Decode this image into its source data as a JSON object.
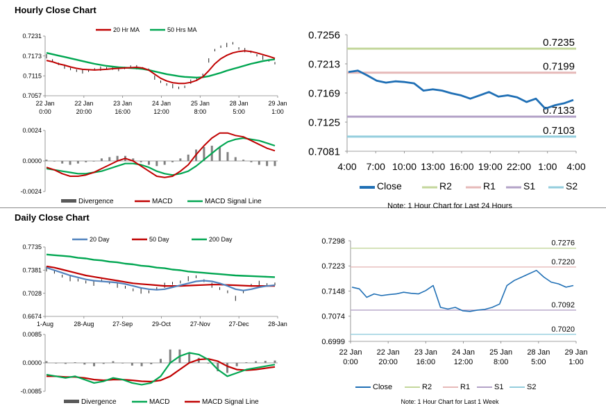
{
  "hourly_title": "Hourly Close Chart",
  "daily_title": "Daily Close Chart",
  "colors": {
    "close": "#1f6fb5",
    "ma_red": "#c00000",
    "ma_green": "#00a651",
    "ma_blue": "#4f81bd",
    "r2": "#c3d69b",
    "r1": "#e6b9b8",
    "s1": "#b3a2c7",
    "s2": "#93cddd",
    "divergence": "#808080"
  },
  "chart_data": [
    {
      "id": "hourly_price",
      "type": "line",
      "title": "Hourly Close Chart",
      "legend": [
        "20 Hr MA",
        "50 Hrs MA"
      ],
      "yticks": [
        "0.7231",
        "0.7173",
        "0.7115",
        "0.7057"
      ],
      "ylim": [
        0.7057,
        0.7231
      ],
      "xticks": [
        [
          "22 Jan",
          "0:00"
        ],
        [
          "22 Jan",
          "20:00"
        ],
        [
          "23 Jan",
          "16:00"
        ],
        [
          "24 Jan",
          "12:00"
        ],
        [
          "25 Jan",
          "8:00"
        ],
        [
          "28 Jan",
          "5:00"
        ],
        [
          "29 Jan",
          "1:00"
        ]
      ],
      "series": [
        {
          "name": "Close",
          "values": [
            0.7172,
            0.716,
            0.715,
            0.7142,
            0.7135,
            0.713,
            0.7128,
            0.713,
            0.7134,
            0.7136,
            0.7137,
            0.7136,
            0.7135,
            0.7138,
            0.7142,
            0.714,
            0.7137,
            0.7133,
            0.711,
            0.7098,
            0.709,
            0.7085,
            0.708,
            0.7083,
            0.7098,
            0.7105,
            0.7118,
            0.716,
            0.719,
            0.72,
            0.7205,
            0.721,
            0.7195,
            0.719,
            0.7185,
            0.7175,
            0.7168,
            0.716,
            0.7152
          ]
        },
        {
          "name": "20 Hr MA",
          "values": [
            0.716,
            0.7156,
            0.715,
            0.7146,
            0.7141,
            0.7137,
            0.7134,
            0.7133,
            0.7132,
            0.7133,
            0.7134,
            0.7136,
            0.7137,
            0.7138,
            0.7139,
            0.714,
            0.7138,
            0.7132,
            0.712,
            0.7108,
            0.71,
            0.7095,
            0.7093,
            0.7093,
            0.7096,
            0.7102,
            0.7112,
            0.713,
            0.715,
            0.7165,
            0.7175,
            0.7182,
            0.7186,
            0.7188,
            0.7186,
            0.7182,
            0.7177,
            0.7172,
            0.7166
          ]
        },
        {
          "name": "50 Hrs MA",
          "values": [
            0.7182,
            0.7178,
            0.7174,
            0.717,
            0.7166,
            0.7162,
            0.7158,
            0.7154,
            0.715,
            0.7147,
            0.7144,
            0.7142,
            0.714,
            0.7139,
            0.7138,
            0.7137,
            0.7135,
            0.7132,
            0.7128,
            0.7124,
            0.712,
            0.7117,
            0.7114,
            0.7112,
            0.7111,
            0.711,
            0.7111,
            0.7114,
            0.7119,
            0.7124,
            0.713,
            0.7135,
            0.714,
            0.7145,
            0.715,
            0.7154,
            0.7158,
            0.7161,
            0.7163
          ]
        }
      ]
    },
    {
      "id": "hourly_macd",
      "type": "line",
      "legend": [
        "Divergence",
        "MACD",
        "MACD Signal Line"
      ],
      "yticks": [
        "0.0024",
        "0.0000",
        "-0.0024"
      ],
      "ylim": [
        -0.0024,
        0.0024
      ],
      "series": [
        {
          "name": "MACD",
          "values": [
            -0.0005,
            -0.0007,
            -0.001,
            -0.0012,
            -0.0012,
            -0.0011,
            -0.0009,
            -0.0006,
            -0.0003,
            0.0,
            0.0002,
            0.0,
            -0.0004,
            -0.0008,
            -0.0012,
            -0.0013,
            -0.0012,
            -0.0008,
            -0.0003,
            0.0005,
            0.0012,
            0.0018,
            0.0022,
            0.0022,
            0.002,
            0.0019,
            0.0016,
            0.0013,
            0.001,
            0.0008
          ]
        },
        {
          "name": "MACD Signal Line",
          "values": [
            -0.0006,
            -0.0007,
            -0.0008,
            -0.0009,
            -0.001,
            -0.001,
            -0.0009,
            -0.0008,
            -0.0006,
            -0.0004,
            -0.0002,
            -0.0002,
            -0.0003,
            -0.0005,
            -0.0008,
            -0.001,
            -0.0011,
            -0.001,
            -0.0008,
            -0.0004,
            0.0001,
            0.0006,
            0.0011,
            0.0015,
            0.0017,
            0.0018,
            0.0017,
            0.0016,
            0.0014,
            0.0012
          ]
        },
        {
          "name": "Divergence",
          "values": [
            0.0001,
            0.0,
            -0.0002,
            -0.0003,
            -0.0002,
            -0.0001,
            0.0,
            0.0002,
            0.0003,
            0.0004,
            0.0004,
            0.0002,
            -0.0001,
            -0.0003,
            -0.0004,
            -0.0003,
            -0.0001,
            0.0002,
            0.0005,
            0.0009,
            0.0011,
            0.0012,
            0.0011,
            0.0007,
            0.0003,
            0.0001,
            -0.0001,
            -0.0003,
            -0.0004,
            -0.0004
          ]
        }
      ]
    },
    {
      "id": "hourly_24h",
      "type": "line",
      "note": "Note: 1 Hour Chart for Last 24 Hours",
      "yticks": [
        "0.7256",
        "0.7213",
        "0.7169",
        "0.7125",
        "0.7081"
      ],
      "ylim": [
        0.7081,
        0.7256
      ],
      "xticks": [
        "4:00",
        "7:00",
        "10:00",
        "13:00",
        "16:00",
        "19:00",
        "22:00",
        "1:00",
        "4:00"
      ],
      "legend": [
        "Close",
        "R2",
        "R1",
        "S1",
        "S2"
      ],
      "levels": [
        {
          "name": "R2",
          "value": 0.7235,
          "label": "0.7235"
        },
        {
          "name": "R1",
          "value": 0.7199,
          "label": "0.7199"
        },
        {
          "name": "S1",
          "value": 0.7133,
          "label": "0.7133"
        },
        {
          "name": "S2",
          "value": 0.7103,
          "label": "0.7103"
        }
      ],
      "series": [
        {
          "name": "Close",
          "values": [
            0.72,
            0.7202,
            0.7195,
            0.7187,
            0.7184,
            0.7186,
            0.7185,
            0.7183,
            0.7172,
            0.7174,
            0.7172,
            0.7168,
            0.7165,
            0.716,
            0.7165,
            0.717,
            0.7163,
            0.7165,
            0.7162,
            0.7155,
            0.716,
            0.7145,
            0.715,
            0.7153,
            0.7158
          ]
        }
      ]
    },
    {
      "id": "daily_price",
      "type": "line",
      "title": "Daily Close Chart",
      "legend": [
        "20 Day",
        "50 Day",
        "200 Day"
      ],
      "yticks": [
        "0.7735",
        "0.7381",
        "0.7028",
        "0.6674"
      ],
      "ylim": [
        0.6674,
        0.7735
      ],
      "xticks": [
        "1-Aug",
        "28-Aug",
        "27-Sep",
        "29-Oct",
        "27-Nov",
        "27-Dec",
        "28-Jan"
      ],
      "series": [
        {
          "name": "Close",
          "values": [
            0.74,
            0.735,
            0.729,
            0.725,
            0.723,
            0.72,
            0.718,
            0.722,
            0.719,
            0.715,
            0.712,
            0.708,
            0.706,
            0.705,
            0.71,
            0.715,
            0.718,
            0.72,
            0.725,
            0.728,
            0.722,
            0.715,
            0.71,
            0.705,
            0.695,
            0.705,
            0.715,
            0.718,
            0.716,
            0.717
          ]
        },
        {
          "name": "20 Day",
          "values": [
            0.742,
            0.738,
            0.734,
            0.73,
            0.727,
            0.724,
            0.722,
            0.721,
            0.72,
            0.719,
            0.717,
            0.714,
            0.711,
            0.709,
            0.708,
            0.709,
            0.712,
            0.715,
            0.718,
            0.721,
            0.722,
            0.721,
            0.718,
            0.714,
            0.709,
            0.707,
            0.709,
            0.712,
            0.714,
            0.715
          ]
        },
        {
          "name": "50 Day",
          "values": [
            0.744,
            0.742,
            0.739,
            0.736,
            0.733,
            0.73,
            0.728,
            0.726,
            0.724,
            0.722,
            0.72,
            0.718,
            0.717,
            0.716,
            0.715,
            0.714,
            0.714,
            0.714,
            0.7145,
            0.715,
            0.7155,
            0.716,
            0.716,
            0.7155,
            0.715,
            0.7145,
            0.714,
            0.714,
            0.714,
            0.714
          ]
        },
        {
          "name": "200 Day",
          "values": [
            0.762,
            0.761,
            0.76,
            0.759,
            0.757,
            0.756,
            0.754,
            0.753,
            0.751,
            0.75,
            0.748,
            0.747,
            0.745,
            0.744,
            0.742,
            0.741,
            0.739,
            0.738,
            0.736,
            0.735,
            0.734,
            0.733,
            0.732,
            0.731,
            0.73,
            0.7295,
            0.729,
            0.7285,
            0.728,
            0.7275
          ]
        }
      ]
    },
    {
      "id": "daily_macd",
      "type": "line",
      "legend": [
        "Divergence",
        "MACD",
        "MACD Signal Line"
      ],
      "yticks": [
        "0.0085",
        "0.0000",
        "-0.0085"
      ],
      "ylim": [
        -0.0085,
        0.0085
      ],
      "series": [
        {
          "name": "MACD",
          "values": [
            -0.0035,
            -0.004,
            -0.0045,
            -0.004,
            -0.005,
            -0.006,
            -0.0055,
            -0.0045,
            -0.005,
            -0.006,
            -0.0065,
            -0.006,
            -0.004,
            0.0,
            0.002,
            0.003,
            0.0025,
            0.001,
            -0.002,
            -0.004,
            -0.003,
            -0.002,
            -0.0015,
            -0.001,
            -0.0005
          ]
        },
        {
          "name": "MACD Signal Line",
          "values": [
            -0.004,
            -0.004,
            -0.0042,
            -0.0042,
            -0.0045,
            -0.005,
            -0.0052,
            -0.005,
            -0.005,
            -0.0052,
            -0.0055,
            -0.0056,
            -0.0052,
            -0.004,
            -0.002,
            0.0,
            0.001,
            0.0012,
            0.0005,
            -0.001,
            -0.002,
            -0.0022,
            -0.002,
            -0.0016,
            -0.0012
          ]
        },
        {
          "name": "Divergence",
          "values": [
            0.0005,
            0.0,
            -0.0003,
            0.0002,
            -0.0005,
            -0.001,
            -0.0003,
            0.0005,
            0.0,
            -0.0008,
            -0.001,
            -0.0004,
            0.0012,
            0.004,
            0.004,
            0.003,
            0.0015,
            -0.0002,
            -0.0025,
            -0.003,
            -0.001,
            0.0002,
            0.0005,
            0.0006,
            0.0007
          ]
        }
      ]
    },
    {
      "id": "daily_week",
      "type": "line",
      "note": "Note: 1 Hour Chart for Last 1 Week",
      "yticks": [
        "0.7298",
        "0.7223",
        "0.7148",
        "0.7074",
        "0.6999"
      ],
      "ylim": [
        0.6999,
        0.7298
      ],
      "xticks": [
        [
          "22 Jan",
          "0:00"
        ],
        [
          "22 Jan",
          "20:00"
        ],
        [
          "23 Jan",
          "16:00"
        ],
        [
          "24 Jan",
          "12:00"
        ],
        [
          "25 Jan",
          "8:00"
        ],
        [
          "28 Jan",
          "5:00"
        ],
        [
          "29 Jan",
          "1:00"
        ]
      ],
      "legend": [
        "Close",
        "R2",
        "R1",
        "S1",
        "S2"
      ],
      "levels": [
        {
          "name": "R2",
          "value": 0.7276,
          "label": "0.7276"
        },
        {
          "name": "R1",
          "value": 0.722,
          "label": "0.7220"
        },
        {
          "name": "S1",
          "value": 0.7092,
          "label": "0.7092"
        },
        {
          "name": "S2",
          "value": 0.702,
          "label": "0.7020"
        }
      ],
      "series": [
        {
          "name": "Close",
          "values": [
            0.716,
            0.7155,
            0.713,
            0.714,
            0.7135,
            0.7138,
            0.714,
            0.7145,
            0.7142,
            0.714,
            0.715,
            0.7165,
            0.71,
            0.7095,
            0.71,
            0.709,
            0.7088,
            0.7092,
            0.7094,
            0.71,
            0.711,
            0.7165,
            0.718,
            0.719,
            0.72,
            0.721,
            0.719,
            0.7175,
            0.717,
            0.716,
            0.7165
          ]
        }
      ]
    }
  ]
}
